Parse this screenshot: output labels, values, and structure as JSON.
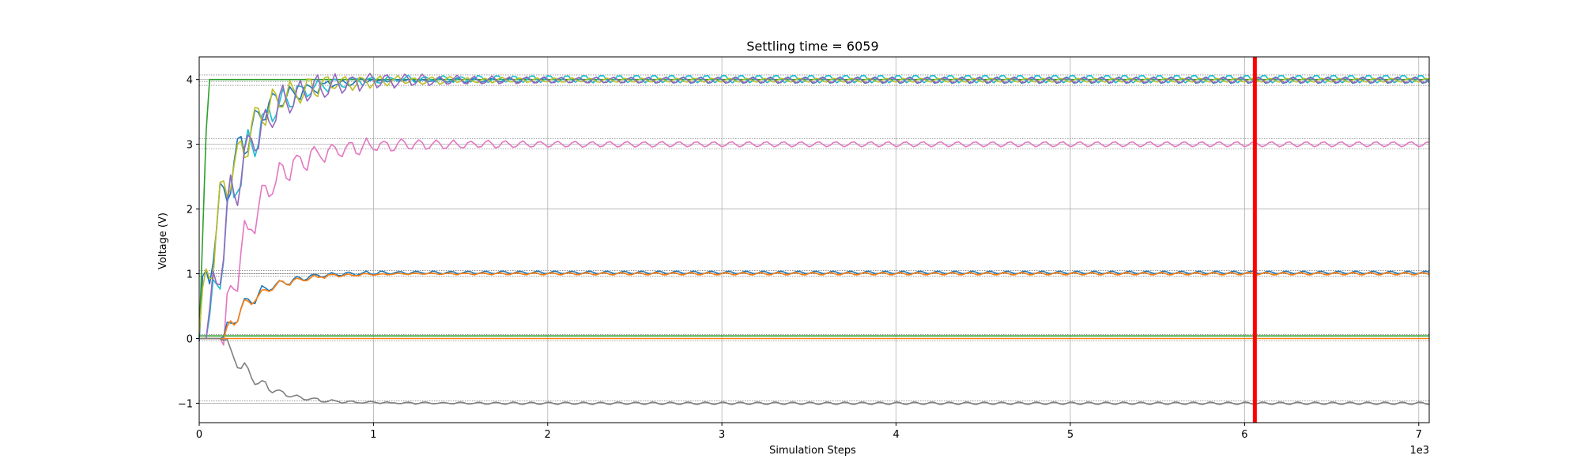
{
  "chart_data": {
    "type": "line",
    "title": "Settling time = 6059",
    "xlabel": "Simulation Steps",
    "ylabel": "Voltage (V)",
    "x_offset_label": "1e3",
    "xlim": [
      0,
      7060
    ],
    "ylim": [
      -1.3,
      4.35
    ],
    "x_ticks": [
      0,
      1000,
      2000,
      3000,
      4000,
      5000,
      6000,
      7000
    ],
    "x_tick_labels": [
      "0",
      "1",
      "2",
      "3",
      "4",
      "5",
      "6",
      "7"
    ],
    "y_ticks": [
      -1,
      0,
      1,
      2,
      3,
      4
    ],
    "y_tick_labels": [
      "−1",
      "0",
      "1",
      "2",
      "3",
      "4"
    ],
    "grid": true,
    "settling_time": 6059,
    "settling_line_color": "#ff0000",
    "reference_levels": [
      4.07,
      3.97,
      3.91,
      3.09,
      2.93,
      1.05,
      1.0,
      0.96,
      0.06,
      -0.04,
      -0.96
    ],
    "series": [
      {
        "color": "#2ca02c",
        "kind": "step",
        "start": 0,
        "rise_end": 50,
        "initial": 0,
        "final": 4.0,
        "osc": 0,
        "period": 100
      },
      {
        "color": "#ff7f0e",
        "kind": "flat",
        "initial": 0,
        "final": 0.0
      },
      {
        "color": "#2ca02c",
        "kind": "flat",
        "initial": 0,
        "final": 0.04
      },
      {
        "color": "#1f77b4",
        "kind": "settle",
        "start": 0,
        "initial": 0,
        "final": 3.99,
        "osc": 0.05,
        "period": 100
      },
      {
        "color": "#17becf",
        "kind": "settle",
        "start": 50,
        "initial": 0,
        "final": 4.01,
        "osc": 0.06,
        "period": 100
      },
      {
        "color": "#bcbd22",
        "kind": "settle",
        "start": 0,
        "initial": 0,
        "final": 3.99,
        "osc": 0.03,
        "period": 100
      },
      {
        "color": "#9467bd",
        "kind": "settle",
        "start": 50,
        "initial": 0,
        "final": 3.99,
        "osc": 0.04,
        "period": 100
      },
      {
        "color": "#e377c2",
        "kind": "settle",
        "start": 140,
        "initial": 0,
        "final": 3.0,
        "osc": 0.04,
        "period": 100
      },
      {
        "color": "#1f77b4",
        "kind": "settle",
        "start": 140,
        "initial": 0,
        "final": 1.02,
        "osc": 0.02,
        "period": 100
      },
      {
        "color": "#ff7f0e",
        "kind": "settle",
        "start": 140,
        "initial": 0,
        "final": 1.0,
        "osc": 0.02,
        "period": 100
      },
      {
        "color": "#7f7f7f",
        "kind": "settle",
        "start": 140,
        "initial": 0,
        "final": -1.0,
        "osc": 0.02,
        "period": 100
      }
    ]
  }
}
